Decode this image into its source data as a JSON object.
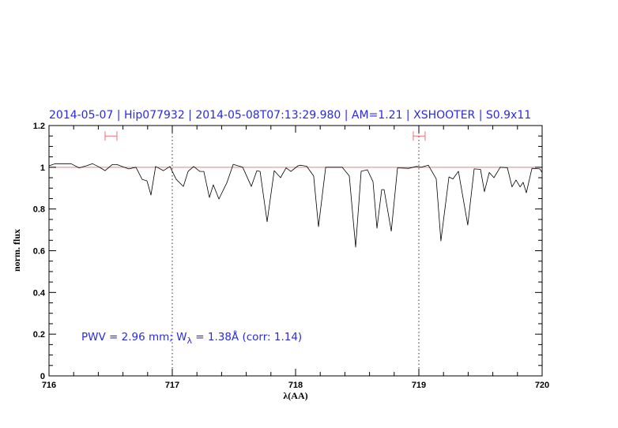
{
  "chart_data": {
    "type": "line",
    "title": "2014-05-07 | Hip077932 | 2014-05-08T07:13:29.980 | AM=1.21 | XSHOOTER | S0.9x11",
    "xlabel": "λ(AA)",
    "ylabel": "norm. flux",
    "xlim": [
      716,
      720
    ],
    "ylim": [
      0,
      1.2
    ],
    "xticks": [
      716,
      717,
      718,
      719,
      720
    ],
    "xtick_labels": [
      "716",
      "717",
      "718",
      "719",
      "720"
    ],
    "yticks": [
      0,
      0.2,
      0.4,
      0.6,
      0.8,
      1,
      1.2
    ],
    "ytick_labels": [
      "0",
      "0.2",
      "0.4",
      "0.6",
      "0.8",
      "1",
      "1.2"
    ],
    "x_minor_step": 0.2,
    "y_minor_step": 0.05,
    "grid": false,
    "continuum_level": 1.0,
    "vertical_dotted_lines": [
      717,
      719
    ],
    "range_markers": [
      {
        "x": [
          716.455,
          716.551
        ],
        "y": 1.15
      },
      {
        "x": [
          718.955,
          719.051
        ],
        "y": 1.15
      }
    ],
    "annotation": {
      "prefix": "PWV  =  2.96  mm;  W",
      "subscript": "λ",
      "suffix": "  =  1.38Å  (corr:  1.14)",
      "x": 716.25,
      "y": 0.19
    },
    "colors": {
      "title": "#2a2ae6",
      "annotation": "#2a2ae6",
      "spectrum": "#000000",
      "continuum": "#e08080",
      "markers": "#f07070"
    },
    "series": [
      {
        "x": [
          716.0,
          716.051,
          716.179,
          716.244,
          716.308,
          716.353,
          716.404,
          716.455,
          716.513,
          716.551,
          716.609,
          716.647,
          716.705,
          716.756,
          716.795,
          716.827,
          716.865,
          716.929,
          716.981,
          717.032,
          717.09,
          717.128,
          717.173,
          717.224,
          717.256,
          717.301,
          717.333,
          717.378,
          717.442,
          717.494,
          717.571,
          717.641,
          717.686,
          717.712,
          717.769,
          717.827,
          717.878,
          717.923,
          717.962,
          718.019,
          718.038,
          718.09,
          718.147,
          718.186,
          718.244,
          718.378,
          718.436,
          718.487,
          718.532,
          718.583,
          718.628,
          718.66,
          718.699,
          718.718,
          718.776,
          718.827,
          718.917,
          718.981,
          719.019,
          719.077,
          719.141,
          719.179,
          719.244,
          719.276,
          719.321,
          719.397,
          719.449,
          719.5,
          719.532,
          719.571,
          719.609,
          719.66,
          719.718,
          719.756,
          719.788,
          719.821,
          719.846,
          719.872,
          719.917,
          719.981,
          720.0
        ],
        "y": [
          1.007,
          1.017,
          1.017,
          0.997,
          1.008,
          1.017,
          1.002,
          0.984,
          1.013,
          1.013,
          1.0,
          0.992,
          1.0,
          0.942,
          0.935,
          0.867,
          1.004,
          0.984,
          1.004,
          0.942,
          0.908,
          0.98,
          1.004,
          0.98,
          0.98,
          0.855,
          0.916,
          0.848,
          0.925,
          1.014,
          1.0,
          0.908,
          0.984,
          0.98,
          0.739,
          0.984,
          0.95,
          0.997,
          0.98,
          1.007,
          1.01,
          1.005,
          0.958,
          0.715,
          1.0,
          1.0,
          0.958,
          0.617,
          0.981,
          0.988,
          0.931,
          0.708,
          0.893,
          0.893,
          0.694,
          0.997,
          0.995,
          1.004,
          1.0,
          1.01,
          0.944,
          0.647,
          0.954,
          0.944,
          0.981,
          0.723,
          0.992,
          0.99,
          0.883,
          0.975,
          0.95,
          1.0,
          0.998,
          0.906,
          0.939,
          0.906,
          0.928,
          0.878,
          0.995,
          0.992,
          0.975
        ]
      }
    ]
  }
}
